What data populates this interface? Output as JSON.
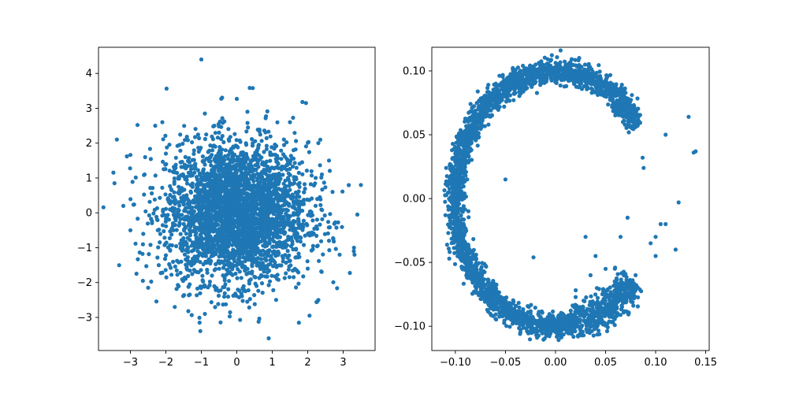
{
  "chart_data": [
    {
      "type": "scatter",
      "title": "",
      "xlabel": "",
      "ylabel": "",
      "xlim": [
        -3.9,
        3.9
      ],
      "ylim": [
        -3.95,
        4.75
      ],
      "xticks": [
        -3,
        -2,
        -1,
        0,
        1,
        2,
        3
      ],
      "xtick_labels": [
        "−3",
        "−2",
        "−1",
        "0",
        "1",
        "2",
        "3"
      ],
      "yticks": [
        -3,
        -2,
        -1,
        0,
        1,
        2,
        3,
        4
      ],
      "ytick_labels": [
        "−3",
        "−2",
        "−1",
        "0",
        "1",
        "2",
        "3",
        "4"
      ],
      "grid": false,
      "marker_color": "#1f77b4",
      "distribution": "approximately bivariate standard normal, centered at (0, 0), several thousand points",
      "series": [
        {
          "points": [
            [
              -1.0,
              4.4
            ],
            [
              0.45,
              3.58
            ],
            [
              0.0,
              3.27
            ],
            [
              1.85,
              3.18
            ],
            [
              1.95,
              3.15
            ],
            [
              -1.45,
              1.6
            ],
            [
              -3.45,
              0.85
            ],
            [
              -3.1,
              1.62
            ],
            [
              -3.0,
              1.66
            ],
            [
              -2.8,
              2.52
            ],
            [
              3.5,
              0.8
            ],
            [
              3.4,
              -0.05
            ],
            [
              3.3,
              -1.1
            ],
            [
              3.32,
              -1.2
            ],
            [
              -0.9,
              2.85
            ],
            [
              -2.3,
              2.5
            ],
            [
              -2.1,
              2.6
            ],
            [
              2.6,
              1.5
            ],
            [
              2.7,
              0.6
            ],
            [
              2.6,
              -0.8
            ],
            [
              2.9,
              -1.2
            ],
            [
              0.9,
              -3.6
            ],
            [
              1.75,
              -3.15
            ],
            [
              -1.05,
              -3.15
            ],
            [
              -0.9,
              -2.9
            ],
            [
              -1.75,
              -2.7
            ],
            [
              -2.65,
              -1.95
            ],
            [
              -2.5,
              -2.15
            ],
            [
              2.05,
              -2.95
            ],
            [
              2.3,
              -2.5
            ],
            [
              -2.2,
              -1.5
            ],
            [
              2.3,
              2.0
            ],
            [
              1.5,
              2.6
            ],
            [
              0.3,
              2.9
            ],
            [
              -0.5,
              2.3
            ],
            [
              -3.2,
              0.2
            ],
            [
              -3.0,
              -0.5
            ],
            [
              2.4,
              1.1
            ],
            [
              -2.6,
              1.1
            ],
            [
              0.0,
              0.0
            ],
            [
              0.5,
              0.3
            ],
            [
              -0.4,
              -0.6
            ],
            [
              1.2,
              -0.9
            ],
            [
              -1.3,
              0.8
            ],
            [
              0.8,
              1.4
            ],
            [
              -0.7,
              -1.8
            ],
            [
              1.6,
              0.2
            ],
            [
              -1.8,
              -0.3
            ],
            [
              0.2,
              -2.2
            ],
            [
              -0.1,
              1.9
            ],
            [
              1.1,
              1.1
            ],
            [
              -1.1,
              -1.1
            ],
            [
              2.0,
              -1.6
            ],
            [
              -2.0,
              1.7
            ],
            [
              0.6,
              -1.3
            ]
          ]
        }
      ]
    },
    {
      "type": "scatter",
      "title": "",
      "xlabel": "",
      "ylabel": "",
      "xlim": [
        -0.1235,
        0.1535
      ],
      "ylim": [
        -0.119,
        0.1185
      ],
      "xticks": [
        -0.1,
        -0.05,
        0.0,
        0.05,
        0.1,
        0.15
      ],
      "xtick_labels": [
        "−0.10",
        "−0.05",
        "0.00",
        "0.05",
        "0.10",
        "0.15"
      ],
      "yticks": [
        -0.1,
        -0.05,
        0.0,
        0.05,
        0.1
      ],
      "ytick_labels": [
        "−0.10",
        "−0.05",
        "0.00",
        "0.05",
        "0.10"
      ],
      "grid": false,
      "marker_color": "#1f77b4",
      "distribution": "points on a noisy open ring of radius ~0.1 centered at (0, 0), arc from ~35° counter-clockwise to ~320°, gap on the right side",
      "series": [
        {
          "points": [
            [
              0.0,
              0.1
            ],
            [
              0.05,
              0.087
            ],
            [
              0.075,
              0.065
            ],
            [
              0.082,
              0.057
            ],
            [
              -0.05,
              0.087
            ],
            [
              -0.087,
              0.05
            ],
            [
              -0.1,
              0.0
            ],
            [
              -0.087,
              -0.05
            ],
            [
              -0.05,
              -0.087
            ],
            [
              0.0,
              -0.1
            ],
            [
              0.05,
              -0.087
            ],
            [
              0.077,
              -0.064
            ],
            [
              0.095,
              -0.035
            ],
            [
              0.1,
              -0.03
            ],
            [
              0.123,
              -0.003
            ],
            [
              0.133,
              0.064
            ],
            [
              0.138,
              0.036
            ],
            [
              0.14,
              0.037
            ],
            [
              0.11,
              0.05
            ],
            [
              0.07,
              0.07
            ],
            [
              0.08,
              -0.06
            ],
            [
              0.12,
              -0.04
            ],
            [
              0.087,
              0.032
            ],
            [
              0.088,
              0.024
            ],
            [
              -0.022,
              -0.046
            ],
            [
              -0.05,
              0.015
            ],
            [
              0.03,
              -0.03
            ],
            [
              0.05,
              -0.055
            ],
            [
              0.072,
              -0.015
            ],
            [
              0.065,
              -0.03
            ],
            [
              0.105,
              -0.02
            ],
            [
              0.1,
              -0.045
            ],
            [
              0.11,
              -0.02
            ],
            [
              0.035,
              -0.06
            ],
            [
              0.04,
              -0.045
            ]
          ]
        }
      ]
    }
  ]
}
